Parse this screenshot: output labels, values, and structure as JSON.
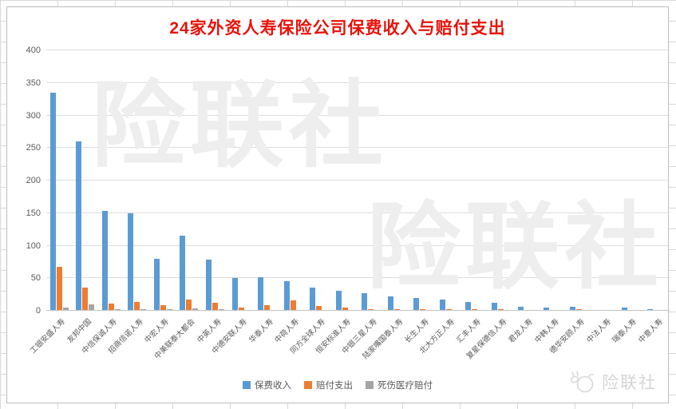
{
  "watermark": "险联社",
  "logo": {
    "text": "险联社"
  },
  "chart_data": {
    "type": "bar",
    "title": "24家外资人寿保险公司保费收入与赔付支出",
    "title_color": "#e8130b",
    "categories": [
      "工银安盛人寿",
      "友邦中国",
      "中信保诚人寿",
      "招商信诺人寿",
      "中宏人寿",
      "中美联泰大都会",
      "中英人寿",
      "中德安联人寿",
      "华泰人寿",
      "中荷人寿",
      "同方全球人寿",
      "恒安标准人寿",
      "中银三星人寿",
      "陆家嘴国泰人寿",
      "长生人寿",
      "北大方正人寿",
      "汇丰人寿",
      "复星保德信人寿",
      "君龙人寿",
      "中韩人寿",
      "德华安顾人寿",
      "中法人寿",
      "瑞泰人寿",
      "中意人寿"
    ],
    "series": [
      {
        "id": "premium-income",
        "name": "保费收入",
        "color": "#5B9BD5",
        "values": [
          335,
          260,
          154,
          150,
          80,
          115,
          79,
          50,
          52,
          46,
          36,
          31,
          27,
          22,
          20,
          17,
          14,
          12,
          6,
          5,
          6,
          1,
          5,
          2
        ]
      },
      {
        "id": "claims-paid",
        "name": "赔付支出",
        "color": "#ED7D31",
        "values": [
          67,
          35,
          11,
          14,
          8,
          17,
          12,
          5,
          9,
          16,
          7,
          5,
          2,
          2,
          2,
          3,
          2,
          2,
          1,
          1,
          2,
          0.5,
          1,
          1
        ]
      },
      {
        "id": "medical-claims",
        "name": "死伤医疗赔付",
        "color": "#A5A5A5",
        "values": [
          5,
          10,
          3,
          2,
          2,
          4,
          2,
          1.5,
          1.5,
          1.5,
          1,
          1,
          1,
          1,
          1,
          1,
          0.5,
          0.5,
          0.4,
          0.4,
          0.4,
          0.2,
          0.3,
          0.3
        ]
      }
    ],
    "ylim": [
      0,
      400
    ],
    "yticks": [
      0,
      50,
      100,
      150,
      200,
      250,
      300,
      350,
      400
    ],
    "grid": true,
    "legend_position": "bottom"
  }
}
